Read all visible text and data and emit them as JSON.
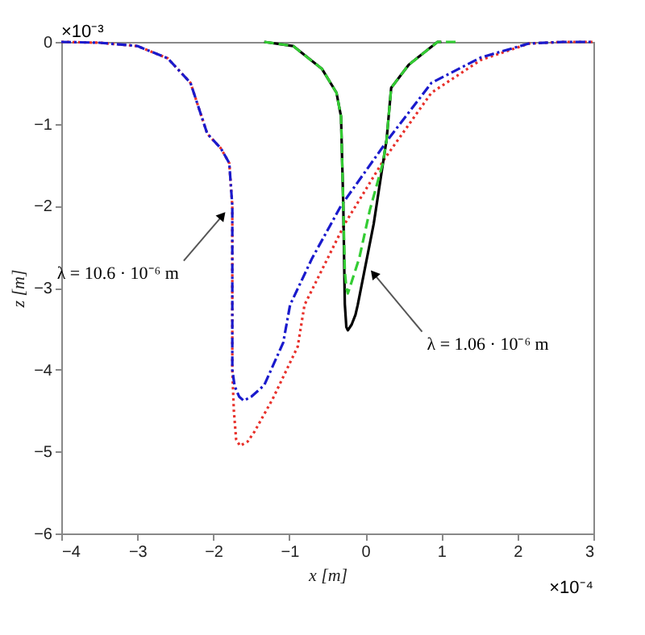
{
  "chart_data": {
    "type": "line",
    "xlabel": "x [m]",
    "ylabel": "z [m]",
    "xlim": [
      -4,
      3
    ],
    "xticks": [
      -4,
      -3,
      -2,
      -1,
      0,
      1,
      2,
      3
    ],
    "ylim": [
      -6,
      0
    ],
    "yticks": [
      -6,
      -5,
      -4,
      -3,
      -2,
      -1,
      0
    ],
    "grid": false,
    "legend": false,
    "marker": "none",
    "series": [
      {
        "color": "#e8302a",
        "line_style": "dotted",
        "x": [
          -4,
          -3.5,
          -3,
          -2.6,
          -2.3,
          -2.08,
          -1.9,
          -1.79,
          -1.75,
          -1.75,
          -1.75,
          -1.73,
          -1.7,
          -1.65,
          -1.55,
          -1.46,
          -1.22,
          -0.89,
          -0.8,
          -0.27,
          0.25,
          0.87,
          1.52,
          2.15,
          2.6,
          3
        ],
        "values": [
          0,
          -0.01,
          -0.05,
          -0.2,
          -0.5,
          -1.12,
          -1.3,
          -1.48,
          -2.0,
          -3.0,
          -4.0,
          -4.5,
          -4.85,
          -4.93,
          -4.88,
          -4.76,
          -4.36,
          -3.72,
          -3.21,
          -2.22,
          -1.43,
          -0.62,
          -0.22,
          -0.02,
          0,
          0
        ]
      },
      {
        "color": "#1a1acc",
        "line_style": "dashdot",
        "x": [
          -4,
          -3.5,
          -3,
          -2.6,
          -2.3,
          -2.08,
          -1.9,
          -1.79,
          -1.75,
          -1.75,
          -1.75,
          -1.72,
          -1.66,
          -1.6,
          -1.5,
          -1.33,
          -1.08,
          -0.99,
          -0.7,
          -0.32,
          0.3,
          0.87,
          1.52,
          2.15,
          2.6,
          3
        ],
        "values": [
          0,
          -0.01,
          -0.05,
          -0.2,
          -0.5,
          -1.12,
          -1.3,
          -1.48,
          -2.0,
          -3.0,
          -4.0,
          -4.2,
          -4.33,
          -4.38,
          -4.33,
          -4.19,
          -3.67,
          -3.21,
          -2.64,
          -2.0,
          -1.19,
          -0.5,
          -0.19,
          -0.02,
          0,
          0
        ]
      },
      {
        "color": "#000000",
        "line_style": "solid",
        "x": [
          -1.33,
          -0.95,
          -0.57,
          -0.38,
          -0.32,
          -0.29,
          -0.27,
          -0.25,
          -0.23,
          -0.18,
          -0.13,
          -0.1,
          0.11,
          0.28,
          0.34,
          0.57,
          0.95,
          1.0
        ],
        "values": [
          0,
          -0.05,
          -0.33,
          -0.62,
          -0.91,
          -2.0,
          -3.2,
          -3.48,
          -3.52,
          -3.45,
          -3.33,
          -3.21,
          -2.22,
          -1.19,
          -0.56,
          -0.28,
          0,
          0
        ]
      },
      {
        "color": "#33cc33",
        "line_style": "dashed",
        "x": [
          -1.33,
          -0.95,
          -0.57,
          -0.38,
          -0.32,
          -0.29,
          -0.27,
          -0.25,
          -0.23,
          -0.08,
          0.06,
          0.23,
          0.28,
          0.34,
          0.57,
          0.95,
          1.2
        ],
        "values": [
          0,
          -0.05,
          -0.33,
          -0.62,
          -0.91,
          -2.0,
          -2.8,
          -3.0,
          -3.07,
          -2.64,
          -2.05,
          -1.48,
          -1.19,
          -0.56,
          -0.28,
          0,
          0
        ]
      }
    ],
    "annotations": [
      "×10⁻³",
      "×10⁻⁴",
      {
        "text": "λ = 10.6 · 10⁻⁶ m",
        "x": -1.88,
        "y": -2.12
      },
      {
        "text": "λ = 1.06 · 10⁻⁶ m",
        "x": 0.11,
        "y": -2.83
      }
    ]
  }
}
